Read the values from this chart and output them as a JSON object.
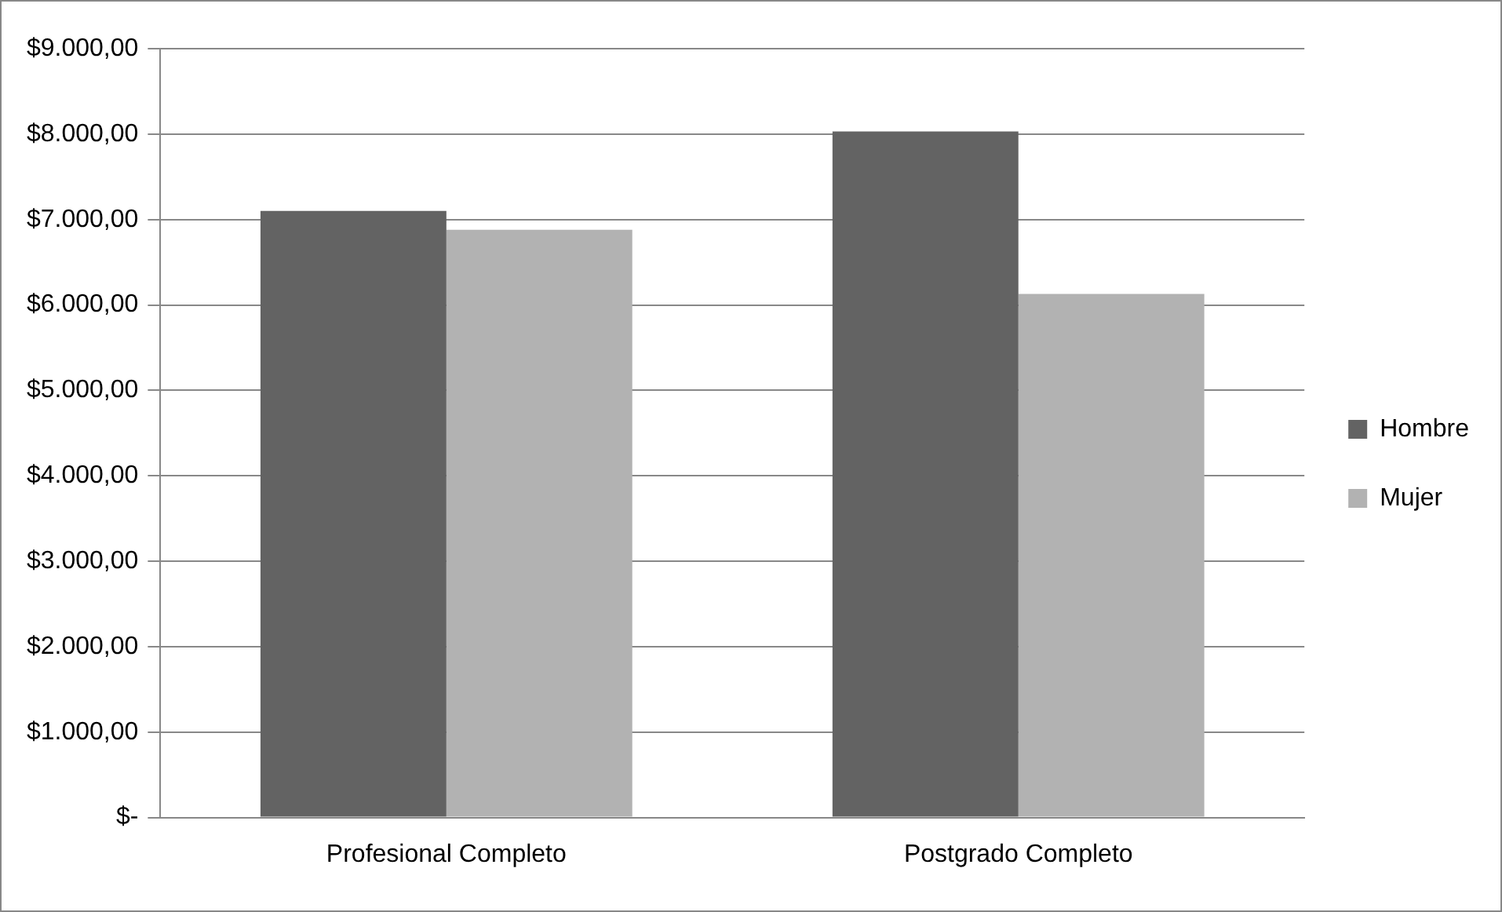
{
  "chart_data": {
    "type": "bar",
    "categories": [
      "Profesional Completo",
      "Postgrado Completo"
    ],
    "series": [
      {
        "name": "Hombre",
        "color": "#636363",
        "values": [
          7100,
          8030
        ]
      },
      {
        "name": "Mujer",
        "color": "#b2b2b2",
        "values": [
          6880,
          6130
        ]
      }
    ],
    "ylim": [
      0,
      9000
    ],
    "yticks": [
      {
        "value": 0,
        "label": "$-"
      },
      {
        "value": 1000,
        "label": "$1.000,00"
      },
      {
        "value": 2000,
        "label": "$2.000,00"
      },
      {
        "value": 3000,
        "label": "$3.000,00"
      },
      {
        "value": 4000,
        "label": "$4.000,00"
      },
      {
        "value": 5000,
        "label": "$5.000,00"
      },
      {
        "value": 6000,
        "label": "$6.000,00"
      },
      {
        "value": 7000,
        "label": "$7.000,00"
      },
      {
        "value": 8000,
        "label": "$8.000,00"
      },
      {
        "value": 9000,
        "label": "$9.000,00"
      }
    ],
    "grid": "y",
    "legend": "right"
  }
}
